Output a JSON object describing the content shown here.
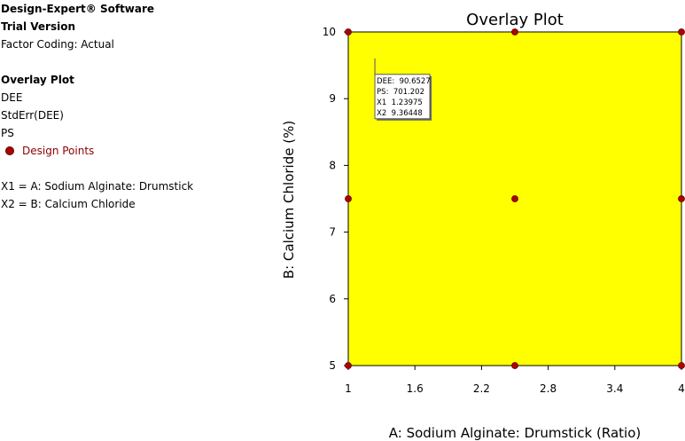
{
  "header": {
    "software": "Design-Expert® Software",
    "version": "Trial Version",
    "factor_coding": "Factor Coding: Actual"
  },
  "overlay_info": {
    "heading": "Overlay Plot",
    "responses": [
      "DEE",
      "StdErr(DEE)",
      "PS"
    ],
    "legend_label": "Design Points",
    "factor_x1": "X1 = A: Sodium Alginate: Drumstick",
    "factor_x2": "X2 = B: Calcium Chloride"
  },
  "colors": {
    "region_fill": "#ffff00",
    "design_point": "#b00000",
    "legend_text": "#8b0000"
  },
  "chart_data": {
    "type": "scatter",
    "title": "Overlay Plot",
    "xlabel": "A: Sodium Alginate: Drumstick (Ratio)",
    "ylabel": "B: Calcium Chloride (%)",
    "xlim": [
      1,
      4
    ],
    "ylim": [
      5,
      10
    ],
    "x_ticks": [
      1,
      1.6,
      2.2,
      2.8,
      3.4,
      4
    ],
    "x_tick_labels": [
      "1",
      "1.6",
      "2.2",
      "2.8",
      "3.4",
      "4"
    ],
    "y_ticks": [
      5,
      6,
      7,
      8,
      9,
      10
    ],
    "y_tick_labels": [
      "5",
      "6",
      "7",
      "8",
      "9",
      "10"
    ],
    "region": "entire design space shaded yellow",
    "design_points": [
      {
        "x": 1,
        "y": 10
      },
      {
        "x": 2.5,
        "y": 10
      },
      {
        "x": 4,
        "y": 10
      },
      {
        "x": 1,
        "y": 7.5
      },
      {
        "x": 2.5,
        "y": 7.5
      },
      {
        "x": 4,
        "y": 7.5
      },
      {
        "x": 1,
        "y": 5
      },
      {
        "x": 2.5,
        "y": 5
      },
      {
        "x": 4,
        "y": 5
      }
    ],
    "flag": {
      "x": 1.23975,
      "y": 9.36448,
      "lines": [
        "DEE:  90.6527",
        "PS:  701.202",
        "X1  1.23975",
        "X2  9.36448"
      ]
    }
  }
}
